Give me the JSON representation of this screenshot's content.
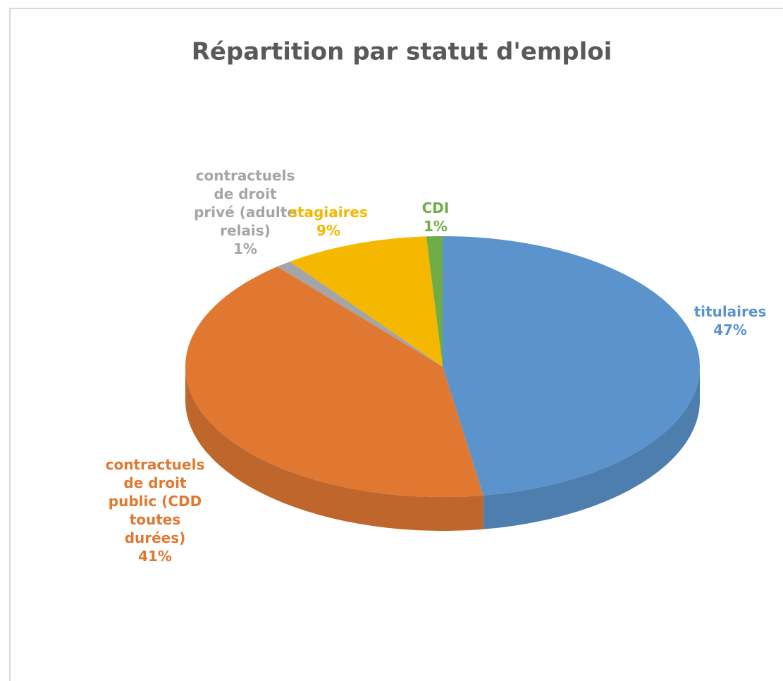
{
  "chart_data": {
    "type": "pie",
    "title": "Répartition par statut d'emploi",
    "categories": [
      "titulaires",
      "contractuels de droit public (CDD toutes durées)",
      "contractuels de droit privé (adulte relais)",
      "stagiaires",
      "CDI"
    ],
    "values": [
      47,
      41,
      1,
      9,
      1
    ],
    "value_labels": [
      "47%",
      "41%",
      "1%",
      "9%",
      "1%"
    ],
    "colors": [
      "#5b94cd",
      "#e07832",
      "#a5a5a5",
      "#f4b800",
      "#70ad47"
    ]
  }
}
